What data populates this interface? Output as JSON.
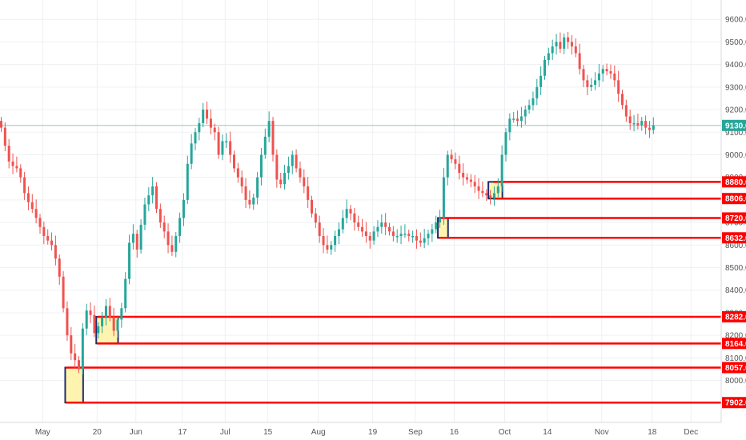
{
  "chart_data": {
    "type": "candlestick",
    "title": "",
    "xlabel": "",
    "ylabel": "",
    "ylim": [
      7850,
      9650
    ],
    "y_ticks": [
      8000,
      8100,
      8200,
      8300,
      8400,
      8500,
      8600,
      8700,
      8800,
      8900,
      9000,
      9100,
      9200,
      9300,
      9400,
      9500,
      9600
    ],
    "y_tick_labels": [
      "8000.0",
      "8100.0",
      "8200.0",
      "8300.0",
      "8400.0",
      "8500.0",
      "8600.0",
      "8700.0",
      "8800.0",
      "8900.0",
      "9000.0",
      "9100.0",
      "9200.0",
      "9300.0",
      "9400.0",
      "9500.0",
      "9600.0"
    ],
    "x_ticks": [
      {
        "bar": 11,
        "label": "May"
      },
      {
        "bar": 25,
        "label": "20"
      },
      {
        "bar": 35,
        "label": "Jun"
      },
      {
        "bar": 47,
        "label": "17"
      },
      {
        "bar": 58,
        "label": "Jul"
      },
      {
        "bar": 69,
        "label": "15"
      },
      {
        "bar": 82,
        "label": "Aug"
      },
      {
        "bar": 96,
        "label": "19"
      },
      {
        "bar": 107,
        "label": "Sep"
      },
      {
        "bar": 117,
        "label": "16"
      },
      {
        "bar": 130,
        "label": "Oct"
      },
      {
        "bar": 141,
        "label": "14"
      },
      {
        "bar": 155,
        "label": "Nov"
      },
      {
        "bar": 168,
        "label": "18"
      },
      {
        "bar": 178,
        "label": "Dec"
      }
    ],
    "grid": true,
    "colors": {
      "up": "#26a69a",
      "down": "#ef5350",
      "level": "#ff0000",
      "zone_fill": "#fff3b0",
      "zone_border": "#1f2e6e",
      "last_price": "#26a69a",
      "grid": "#eef0f3"
    },
    "last_price": {
      "value": 9130,
      "label": "9130.0"
    },
    "levels": [
      {
        "value": 8880,
        "label": "8880.0",
        "from_bar": 127
      },
      {
        "value": 8806,
        "label": "8806.0",
        "from_bar": 127
      },
      {
        "value": 8720,
        "label": "8720.0",
        "from_bar": 113
      },
      {
        "value": 8632,
        "label": "8632.0",
        "from_bar": 113
      },
      {
        "value": 8282,
        "label": "8282.0",
        "from_bar": 25
      },
      {
        "value": 8164,
        "label": "8164.0",
        "from_bar": 25
      },
      {
        "value": 8057,
        "label": "8057.0",
        "from_bar": 17
      },
      {
        "value": 7902,
        "label": "7902.0",
        "from_bar": 17
      }
    ],
    "zones": [
      {
        "from_bar": 17,
        "to_bar": 21,
        "top": 8057,
        "bottom": 7902
      },
      {
        "from_bar": 25,
        "to_bar": 30,
        "top": 8282,
        "bottom": 8164
      },
      {
        "from_bar": 113,
        "to_bar": 115,
        "top": 8720,
        "bottom": 8632
      },
      {
        "from_bar": 126,
        "to_bar": 129,
        "top": 8880,
        "bottom": 8806
      }
    ],
    "closes": [
      9120,
      9040,
      8970,
      8950,
      8940,
      8900,
      8830,
      8790,
      8760,
      8720,
      8680,
      8640,
      8620,
      8600,
      8540,
      8460,
      8320,
      8200,
      8120,
      8090,
      8050,
      8230,
      8310,
      8290,
      8210,
      8240,
      8280,
      8330,
      8280,
      8220,
      8270,
      8320,
      8450,
      8610,
      8650,
      8580,
      8690,
      8780,
      8820,
      8860,
      8760,
      8700,
      8660,
      8600,
      8570,
      8640,
      8720,
      8800,
      8960,
      9050,
      9100,
      9140,
      9200,
      9160,
      9120,
      9100,
      9000,
      9060,
      9060,
      9000,
      8940,
      8900,
      8860,
      8800,
      8780,
      8810,
      8900,
      9000,
      9080,
      9150,
      9000,
      8890,
      8870,
      8920,
      8950,
      9000,
      8940,
      8900,
      8860,
      8800,
      8740,
      8700,
      8640,
      8600,
      8580,
      8600,
      8640,
      8670,
      8720,
      8760,
      8740,
      8700,
      8680,
      8660,
      8640,
      8620,
      8660,
      8680,
      8700,
      8680,
      8660,
      8640,
      8640,
      8650,
      8650,
      8640,
      8640,
      8620,
      8610,
      8630,
      8650,
      8670,
      8700,
      8720,
      8900,
      9000,
      8980,
      8960,
      8920,
      8900,
      8890,
      8880,
      8860,
      8840,
      8830,
      8820,
      8810,
      8830,
      8860,
      9000,
      9100,
      9160,
      9160,
      9150,
      9170,
      9200,
      9220,
      9250,
      9300,
      9350,
      9420,
      9450,
      9480,
      9500,
      9470,
      9520,
      9500,
      9480,
      9450,
      9380,
      9330,
      9300,
      9310,
      9330,
      9360,
      9380,
      9370,
      9360,
      9330,
      9270,
      9220,
      9170,
      9140,
      9140,
      9130,
      9150,
      9120,
      9110,
      9130
    ]
  }
}
